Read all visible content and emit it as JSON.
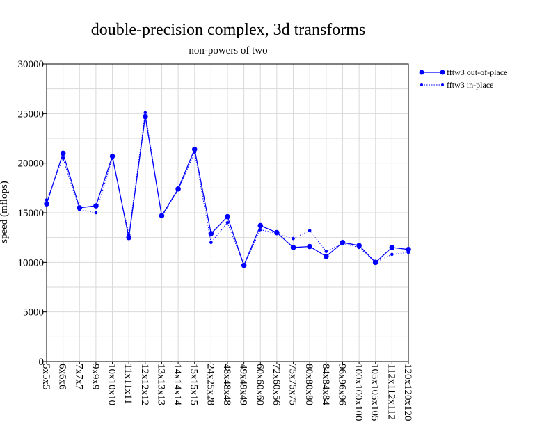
{
  "chart_data": {
    "type": "line",
    "title": "double-precision complex, 3d transforms",
    "subtitle": "non-powers of two",
    "xlabel": "",
    "ylabel": "speed (mflops)",
    "ylim": [
      0,
      30000
    ],
    "yticks": [
      0,
      5000,
      10000,
      15000,
      20000,
      25000,
      30000
    ],
    "grid": true,
    "legend_position": "right",
    "categories": [
      "5x5x5",
      "6x6x6",
      "7x7x7",
      "9x9x9",
      "10x10x10",
      "11x11x11",
      "12x12x12",
      "13x13x13",
      "14x14x14",
      "15x15x15",
      "24x25x28",
      "48x48x48",
      "49x49x49",
      "60x60x60",
      "72x60x56",
      "75x75x75",
      "80x80x80",
      "84x84x84",
      "96x96x96",
      "100x100x100",
      "105x105x105",
      "112x112x112",
      "120x120x120"
    ],
    "series": [
      {
        "name": "fftw3 out-of-place",
        "color": "#0000ff",
        "style": "solid",
        "values": [
          15900,
          21000,
          15500,
          15700,
          20700,
          12500,
          24700,
          14700,
          17400,
          21400,
          12900,
          14600,
          9700,
          13700,
          13000,
          11500,
          11600,
          10600,
          12000,
          11700,
          10000,
          11500,
          11300
        ]
      },
      {
        "name": "fftw3 in-place",
        "color": "#0000ff",
        "style": "dotted",
        "values": [
          16300,
          20500,
          15300,
          15000,
          20500,
          12800,
          25100,
          14600,
          17300,
          21100,
          12000,
          14000,
          9700,
          13300,
          12900,
          12400,
          13200,
          11100,
          11900,
          11500,
          10000,
          10800,
          11000
        ]
      }
    ]
  }
}
